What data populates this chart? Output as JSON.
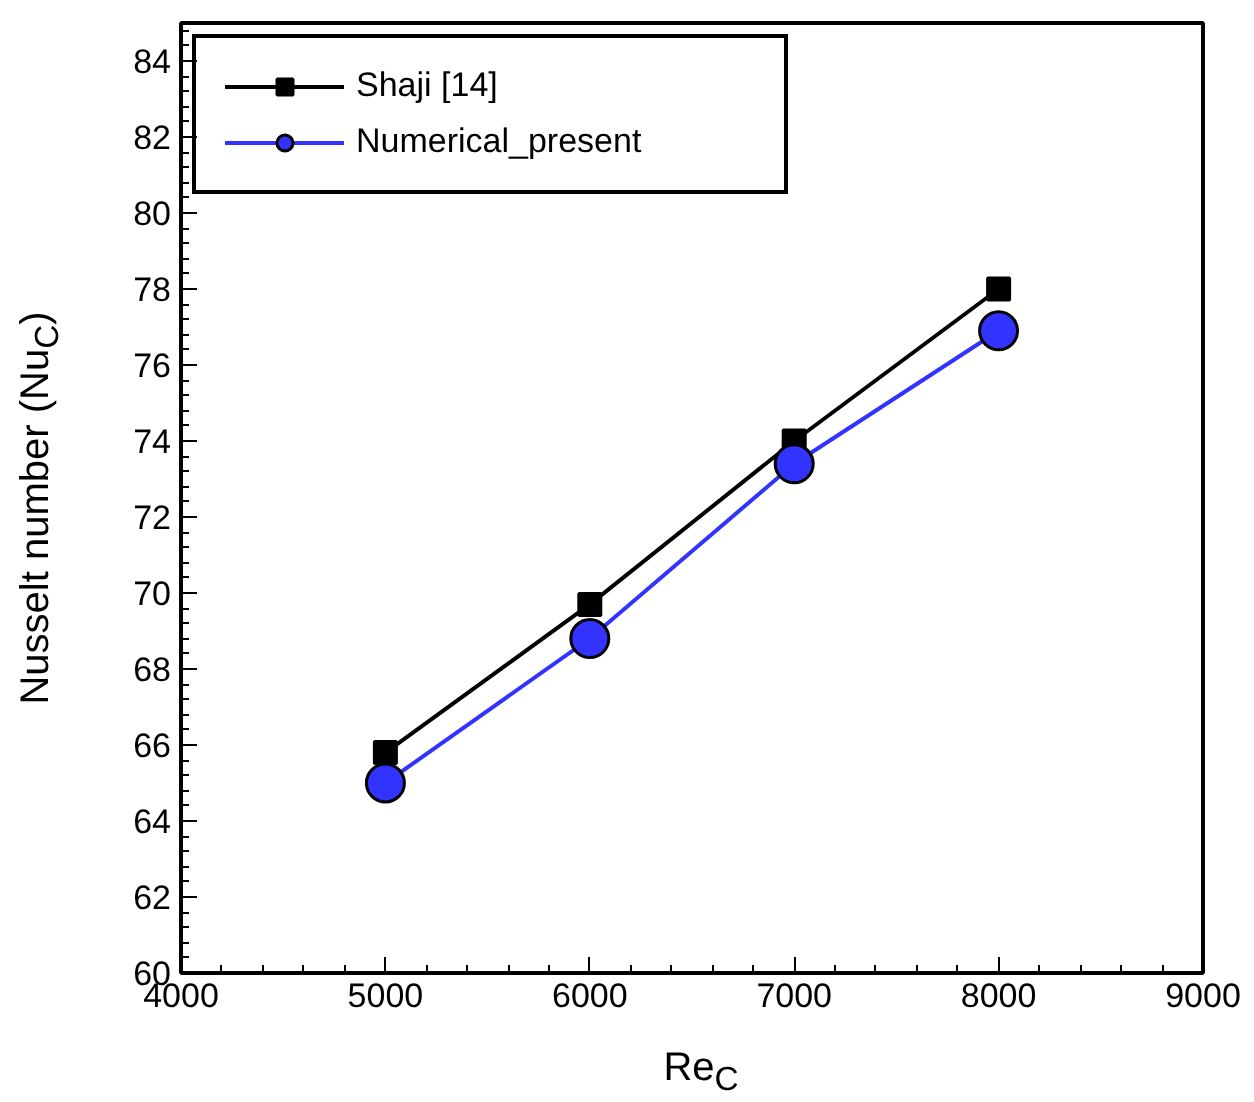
{
  "chart_data": {
    "type": "line",
    "xlabel": "Re$_{C}$",
    "ylabel": "Nusselt number (Nu$_{C}$)",
    "x": [
      5000,
      6000,
      7000,
      8000
    ],
    "series": [
      {
        "name": "Shaji [14]",
        "color": "#000000",
        "marker": "square",
        "values": [
          65.8,
          69.7,
          74.0,
          78.0
        ]
      },
      {
        "name": "Numerical_present",
        "color": "#3333ff",
        "marker": "circle",
        "values": [
          65.0,
          68.8,
          73.4,
          76.9
        ]
      }
    ],
    "xlim": [
      4000,
      9000
    ],
    "ylim": [
      60,
      85
    ],
    "xticks": [
      4000,
      5000,
      6000,
      7000,
      8000,
      9000
    ],
    "yticks": [
      60,
      62,
      64,
      66,
      68,
      70,
      72,
      74,
      76,
      78,
      80,
      82,
      84
    ],
    "legend": "top left"
  }
}
